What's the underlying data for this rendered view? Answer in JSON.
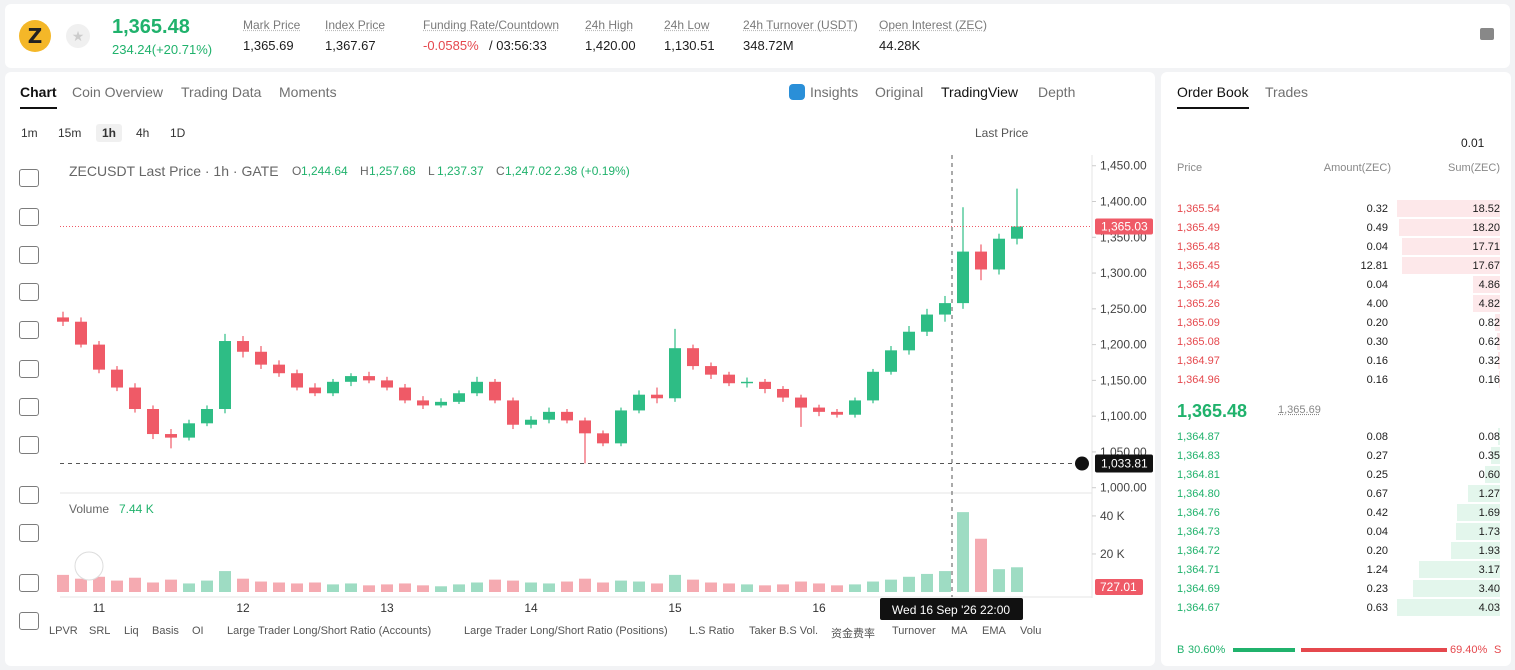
{
  "header": {
    "symbol_icon": "Z",
    "price": "1,365.48",
    "change": "234.24(+20.71%)",
    "stats": [
      {
        "label": "Mark Price",
        "value": "1,365.69"
      },
      {
        "label": "Index Price",
        "value": "1,367.67"
      },
      {
        "label": "Funding Rate/Countdown",
        "value": "-0.0585%",
        "extra": "/ 03:56:33"
      },
      {
        "label": "24h High",
        "value": "1,420.00"
      },
      {
        "label": "24h Low",
        "value": "1,130.51"
      },
      {
        "label": "24h Turnover (USDT)",
        "value": "348.72M"
      },
      {
        "label": "Open Interest (ZEC)",
        "value": "44.28K"
      }
    ]
  },
  "tabs": [
    "Chart",
    "Coin Overview",
    "Trading Data",
    "Moments"
  ],
  "view_tabs": [
    "Insights",
    "Original",
    "TradingView",
    "Depth"
  ],
  "intervals": [
    "1m",
    "15m",
    "1h",
    "4h",
    "1D"
  ],
  "price_type": "Last Price",
  "legend": {
    "symbol": "ZECUSDT Last Price · 1h · GATE",
    "ohlc": [
      {
        "k": "O",
        "v": "1,244.64"
      },
      {
        "k": "H",
        "v": "1,257.68"
      },
      {
        "k": "L",
        "v": "1,237.37"
      },
      {
        "k": "C",
        "v": "1,247.02"
      }
    ],
    "change": "2.38 (+0.19%)"
  },
  "chart_data": {
    "type": "candlestick",
    "categories": [
      null,
      null,
      "11",
      null,
      null,
      null,
      null,
      null,
      null,
      null,
      "12",
      null,
      null,
      null,
      null,
      null,
      null,
      null,
      "13",
      null,
      null,
      null,
      null,
      null,
      null,
      null,
      "14",
      null,
      null,
      null,
      null,
      null,
      null,
      null,
      "15",
      null,
      null,
      null,
      null,
      null,
      null,
      null,
      "16",
      null,
      null,
      null,
      null,
      null,
      null,
      null,
      null,
      null,
      null,
      null
    ],
    "open": [
      1238,
      1232,
      1200,
      1165,
      1140,
      1110,
      1075,
      1070,
      1090,
      1110,
      1205,
      1190,
      1172,
      1160,
      1140,
      1132,
      1148,
      1156,
      1150,
      1140,
      1122,
      1115,
      1120,
      1132,
      1148,
      1122,
      1088,
      1095,
      1106,
      1094,
      1076,
      1062,
      1108,
      1130,
      1125,
      1195,
      1170,
      1158,
      1146,
      1148,
      1138,
      1126,
      1112,
      1106,
      1102,
      1122,
      1162,
      1192,
      1218,
      1242,
      1258,
      1330,
      1305,
      1348
    ],
    "high": [
      1246,
      1238,
      1205,
      1170,
      1146,
      1115,
      1082,
      1095,
      1115,
      1215,
      1212,
      1198,
      1178,
      1165,
      1146,
      1152,
      1160,
      1162,
      1155,
      1145,
      1128,
      1125,
      1136,
      1155,
      1152,
      1126,
      1100,
      1112,
      1110,
      1098,
      1080,
      1112,
      1136,
      1140,
      1222,
      1200,
      1175,
      1162,
      1154,
      1152,
      1142,
      1130,
      1116,
      1110,
      1126,
      1166,
      1198,
      1226,
      1250,
      1268,
      1392,
      1340,
      1355,
      1418
    ],
    "low": [
      1226,
      1196,
      1160,
      1135,
      1105,
      1068,
      1055,
      1066,
      1086,
      1104,
      1182,
      1166,
      1155,
      1136,
      1128,
      1128,
      1142,
      1146,
      1136,
      1118,
      1110,
      1112,
      1117,
      1128,
      1118,
      1082,
      1083,
      1090,
      1090,
      1034,
      1058,
      1058,
      1104,
      1118,
      1120,
      1165,
      1152,
      1142,
      1140,
      1132,
      1120,
      1085,
      1100,
      1098,
      1098,
      1118,
      1158,
      1186,
      1212,
      1232,
      1250,
      1290,
      1298,
      1340
    ],
    "close": [
      1232,
      1200,
      1165,
      1140,
      1110,
      1075,
      1070,
      1090,
      1110,
      1205,
      1190,
      1172,
      1160,
      1140,
      1132,
      1148,
      1156,
      1150,
      1140,
      1122,
      1115,
      1120,
      1132,
      1148,
      1122,
      1088,
      1095,
      1106,
      1094,
      1076,
      1062,
      1108,
      1130,
      1125,
      1195,
      1170,
      1158,
      1146,
      1148,
      1138,
      1126,
      1112,
      1106,
      1102,
      1122,
      1162,
      1192,
      1218,
      1242,
      1258,
      1330,
      1305,
      1348,
      1365.03
    ],
    "up_color": "#2ebd85",
    "down_color": "#ef5a67",
    "ylim": [
      994,
      1465
    ],
    "yticks": [
      {
        "value": 1000,
        "label": "1,000.00"
      },
      {
        "value": 1050,
        "label": "1,050.00"
      },
      {
        "value": 1100,
        "label": "1,100.00"
      },
      {
        "value": 1150,
        "label": "1,150.00"
      },
      {
        "value": 1200,
        "label": "1,200.00"
      },
      {
        "value": 1250,
        "label": "1,250.00"
      },
      {
        "value": 1300,
        "label": "1,300.00"
      },
      {
        "value": 1350,
        "label": "1,350.00"
      },
      {
        "value": 1400,
        "label": "1,400.00"
      },
      {
        "value": 1450,
        "label": "1,450.00"
      }
    ],
    "last_price": {
      "value": 1365.03,
      "label": "1,365.03"
    },
    "crosshair": {
      "value": 1033.81,
      "label": "1,033.81"
    },
    "crosshair_time": "Wed 16 Sep '26   22:00",
    "volume": {
      "title": "Volume",
      "last": "7.44 K",
      "current": "727.01",
      "values": [
        9000,
        7000,
        8000,
        6000,
        7500,
        5000,
        6500,
        4500,
        6000,
        11000,
        7000,
        5500,
        5000,
        4500,
        5000,
        4000,
        4500,
        3500,
        4000,
        4500,
        3500,
        3000,
        4000,
        5000,
        6500,
        6000,
        5000,
        4500,
        5500,
        7000,
        5000,
        6000,
        5500,
        4500,
        9000,
        6500,
        5000,
        4500,
        4000,
        3500,
        4000,
        5500,
        4500,
        3500,
        4000,
        5500,
        6500,
        8000,
        9500,
        11000,
        42000,
        28000,
        12000,
        13000
      ],
      "ylim": [
        0,
        51000
      ],
      "yticks": [
        {
          "value": 20000,
          "label": "20 K"
        },
        {
          "value": 40000,
          "label": "40 K"
        }
      ]
    }
  },
  "indicators": [
    "LPVR",
    "SRL",
    "Liq",
    "Basis",
    "OI",
    "Large Trader Long/Short Ratio (Accounts)",
    "Large Trader Long/Short Ratio (Positions)",
    "L.S Ratio",
    "Taker B.S Vol.",
    "资金费率",
    "Turnover",
    "MA",
    "EMA",
    "Volu"
  ],
  "orderbook": {
    "tabs": [
      "Order Book",
      "Trades"
    ],
    "precision": "0.01",
    "columns": [
      "Price",
      "Amount(ZEC)",
      "Sum(ZEC)"
    ],
    "asks": [
      [
        "1,365.54",
        "0.32",
        "18.52"
      ],
      [
        "1,365.49",
        "0.49",
        "18.20"
      ],
      [
        "1,365.48",
        "0.04",
        "17.71"
      ],
      [
        "1,365.45",
        "12.81",
        "17.67"
      ],
      [
        "1,365.44",
        "0.04",
        "4.86"
      ],
      [
        "1,365.26",
        "4.00",
        "4.82"
      ],
      [
        "1,365.09",
        "0.20",
        "0.82"
      ],
      [
        "1,365.08",
        "0.30",
        "0.62"
      ],
      [
        "1,364.97",
        "0.16",
        "0.32"
      ],
      [
        "1,364.96",
        "0.16",
        "0.16"
      ]
    ],
    "mid": "1,365.48",
    "mark": "1,365.69",
    "bids": [
      [
        "1,364.87",
        "0.08",
        "0.08"
      ],
      [
        "1,364.83",
        "0.27",
        "0.35"
      ],
      [
        "1,364.81",
        "0.25",
        "0.60"
      ],
      [
        "1,364.80",
        "0.67",
        "1.27"
      ],
      [
        "1,364.76",
        "0.42",
        "1.69"
      ],
      [
        "1,364.73",
        "0.04",
        "1.73"
      ],
      [
        "1,364.72",
        "0.20",
        "1.93"
      ],
      [
        "1,364.71",
        "1.24",
        "3.17"
      ],
      [
        "1,364.69",
        "0.23",
        "3.40"
      ],
      [
        "1,364.67",
        "0.63",
        "4.03"
      ]
    ],
    "ratio": {
      "b": "B",
      "b_pct": "30.60%",
      "s_pct": "69.40%",
      "s": "S"
    }
  }
}
